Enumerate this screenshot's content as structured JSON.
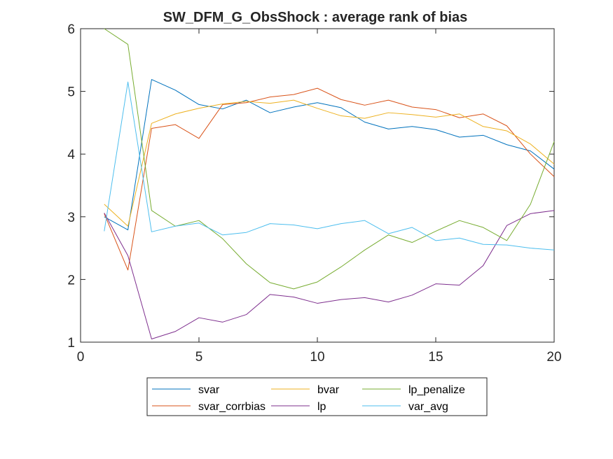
{
  "chart_data": {
    "type": "line",
    "title": "SW_DFM_G_ObsShock : average rank of bias",
    "xlabel": "",
    "ylabel": "",
    "xlim": [
      0,
      20
    ],
    "ylim": [
      1,
      6
    ],
    "xticks": [
      "0",
      "5",
      "10",
      "15",
      "20"
    ],
    "yticks": [
      "1",
      "2",
      "3",
      "4",
      "5",
      "6"
    ],
    "grid": false,
    "legend_position": "below",
    "x": [
      1,
      2,
      3,
      4,
      5,
      6,
      7,
      8,
      9,
      10,
      11,
      12,
      13,
      14,
      15,
      16,
      17,
      18,
      19,
      20
    ],
    "series": [
      {
        "name": "svar",
        "color": "#0072BD",
        "values": [
          3.0,
          2.79,
          5.19,
          5.02,
          4.79,
          4.72,
          4.86,
          4.66,
          4.75,
          4.82,
          4.74,
          4.51,
          4.4,
          4.44,
          4.39,
          4.27,
          4.3,
          4.15,
          4.05,
          3.76
        ]
      },
      {
        "name": "svar_corrbias",
        "color": "#D95319",
        "values": [
          3.05,
          2.15,
          4.41,
          4.47,
          4.25,
          4.79,
          4.82,
          4.91,
          4.95,
          5.05,
          4.87,
          4.78,
          4.86,
          4.75,
          4.71,
          4.58,
          4.64,
          4.45,
          4.0,
          3.64
        ]
      },
      {
        "name": "bvar",
        "color": "#EDB120",
        "values": [
          3.2,
          2.85,
          4.49,
          4.64,
          4.73,
          4.8,
          4.84,
          4.81,
          4.86,
          4.73,
          4.61,
          4.57,
          4.66,
          4.63,
          4.59,
          4.64,
          4.44,
          4.37,
          4.16,
          3.84
        ]
      },
      {
        "name": "lp",
        "color": "#7E2F8E",
        "values": [
          3.06,
          2.38,
          1.05,
          1.17,
          1.39,
          1.32,
          1.44,
          1.76,
          1.72,
          1.62,
          1.68,
          1.71,
          1.64,
          1.75,
          1.93,
          1.91,
          2.22,
          2.86,
          3.05,
          3.1
        ]
      },
      {
        "name": "lp_penalize",
        "color": "#77AC30",
        "values": [
          6.0,
          5.75,
          3.1,
          2.85,
          2.94,
          2.65,
          2.25,
          1.95,
          1.85,
          1.96,
          2.2,
          2.47,
          2.71,
          2.59,
          2.77,
          2.94,
          2.83,
          2.62,
          3.2,
          4.2
        ]
      },
      {
        "name": "var_avg",
        "color": "#4DBEEE",
        "values": [
          2.77,
          5.15,
          2.76,
          2.85,
          2.9,
          2.71,
          2.75,
          2.89,
          2.87,
          2.81,
          2.89,
          2.94,
          2.73,
          2.83,
          2.62,
          2.66,
          2.56,
          2.55,
          2.5,
          2.47
        ]
      }
    ],
    "legend_order": [
      "svar",
      "bvar",
      "lp_penalize",
      "svar_corrbias",
      "lp",
      "var_avg"
    ]
  }
}
